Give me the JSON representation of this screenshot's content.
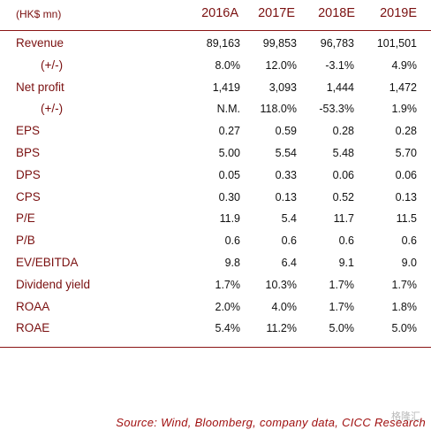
{
  "table": {
    "unit_label": "(HK$ mn)",
    "years": [
      "2016A",
      "2017E",
      "2018E",
      "2019E"
    ],
    "rows": [
      {
        "label": "Revenue",
        "values": [
          "89,163",
          "99,853",
          "96,783",
          "101,501"
        ]
      },
      {
        "label": "(+/-)",
        "values": [
          "8.0%",
          "12.0%",
          "-3.1%",
          "4.9%"
        ]
      },
      {
        "label": "Net profit",
        "values": [
          "1,419",
          "3,093",
          "1,444",
          "1,472"
        ]
      },
      {
        "label": "(+/-)",
        "values": [
          "N.M.",
          "118.0%",
          "-53.3%",
          "1.9%"
        ]
      },
      {
        "label": "EPS",
        "values": [
          "0.27",
          "0.59",
          "0.28",
          "0.28"
        ]
      },
      {
        "label": "BPS",
        "values": [
          "5.00",
          "5.54",
          "5.48",
          "5.70"
        ]
      },
      {
        "label": "DPS",
        "values": [
          "0.05",
          "0.33",
          "0.06",
          "0.06"
        ]
      },
      {
        "label": "CPS",
        "values": [
          "0.30",
          "0.13",
          "0.52",
          "0.13"
        ]
      },
      {
        "label": "P/E",
        "values": [
          "11.9",
          "5.4",
          "11.7",
          "11.5"
        ]
      },
      {
        "label": "P/B",
        "values": [
          "0.6",
          "0.6",
          "0.6",
          "0.6"
        ]
      },
      {
        "label": "EV/EBITDA",
        "values": [
          "9.8",
          "6.4",
          "9.1",
          "9.0"
        ]
      },
      {
        "label": "Dividend yield",
        "values": [
          "1.7%",
          "10.3%",
          "1.7%",
          "1.7%"
        ]
      },
      {
        "label": "ROAA",
        "values": [
          "2.0%",
          "4.0%",
          "1.7%",
          "1.8%"
        ]
      },
      {
        "label": "ROAE",
        "values": [
          "5.4%",
          "11.2%",
          "5.0%",
          "5.0%"
        ]
      }
    ]
  },
  "source": "Source:  Wind,  Bloomberg,  company  data,  CICC  Research",
  "watermark": "格隆汇",
  "colors": {
    "label": "#7a1010",
    "rule": "#8a1515",
    "value": "#111111",
    "source": "#a01010"
  }
}
